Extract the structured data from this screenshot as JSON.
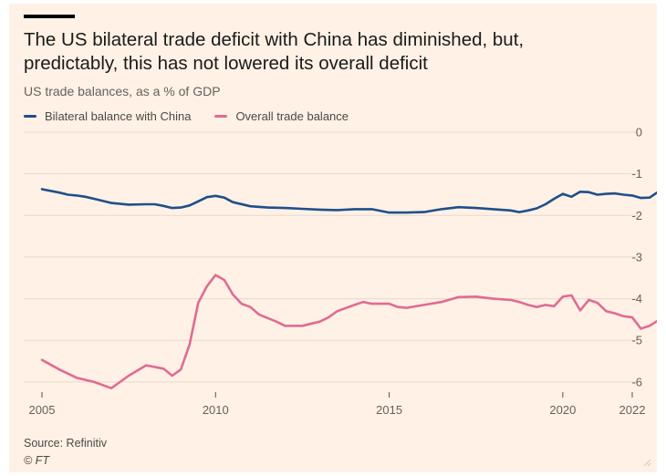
{
  "title_lines": [
    "The US bilateral trade deficit with China has diminished, but,",
    "predictably, this has not lowered its overall deficit"
  ],
  "subtitle": "US trade balances, as a % of GDP",
  "source": "Source: Refinitiv",
  "credit": "© FT",
  "colors": {
    "background": "#fff1e5",
    "china": "#1f4f8a",
    "overall": "#e06b93",
    "grid": "#e6d9ce",
    "axis_text": "#66605c"
  },
  "chart_data": {
    "type": "line",
    "title": "The US bilateral trade deficit with China has diminished, but, predictably, this has not lowered its overall deficit",
    "subtitle": "US trade balances, as a % of GDP",
    "xlabel": "",
    "ylabel": "",
    "xlim": [
      2005,
      2022
    ],
    "ylim": [
      -6.2,
      0
    ],
    "x_ticks": [
      2005,
      2010,
      2015,
      2020,
      2022
    ],
    "x_tick_labels": [
      "2005",
      "2010",
      "2015",
      "2020",
      "2022"
    ],
    "y_ticks": [
      0,
      -1,
      -2,
      -3,
      -4,
      -5,
      -6
    ],
    "y_tick_labels": [
      "0",
      "-1",
      "-2",
      "-3",
      "-4",
      "-5",
      "-6"
    ],
    "grid": "horizontal",
    "legend": "top-left",
    "series": [
      {
        "name": "Bilateral balance with China",
        "color": "#1f4f8a",
        "points": [
          [
            2005.0,
            -1.37
          ],
          [
            2005.5,
            -1.45
          ],
          [
            2005.75,
            -1.5
          ],
          [
            2006.0,
            -1.52
          ],
          [
            2006.25,
            -1.55
          ],
          [
            2006.5,
            -1.6
          ],
          [
            2007.0,
            -1.7
          ],
          [
            2007.5,
            -1.74
          ],
          [
            2008.0,
            -1.73
          ],
          [
            2008.25,
            -1.73
          ],
          [
            2008.5,
            -1.77
          ],
          [
            2008.75,
            -1.82
          ],
          [
            2009.0,
            -1.81
          ],
          [
            2009.25,
            -1.76
          ],
          [
            2009.5,
            -1.66
          ],
          [
            2009.75,
            -1.56
          ],
          [
            2010.0,
            -1.53
          ],
          [
            2010.25,
            -1.57
          ],
          [
            2010.5,
            -1.68
          ],
          [
            2011.0,
            -1.78
          ],
          [
            2011.5,
            -1.81
          ],
          [
            2012.0,
            -1.82
          ],
          [
            2012.5,
            -1.84
          ],
          [
            2013.0,
            -1.86
          ],
          [
            2013.5,
            -1.87
          ],
          [
            2014.0,
            -1.85
          ],
          [
            2014.5,
            -1.85
          ],
          [
            2015.0,
            -1.93
          ],
          [
            2015.5,
            -1.93
          ],
          [
            2016.0,
            -1.92
          ],
          [
            2016.5,
            -1.85
          ],
          [
            2017.0,
            -1.8
          ],
          [
            2017.5,
            -1.82
          ],
          [
            2018.0,
            -1.85
          ],
          [
            2018.5,
            -1.88
          ],
          [
            2018.75,
            -1.92
          ],
          [
            2019.0,
            -1.88
          ],
          [
            2019.25,
            -1.83
          ],
          [
            2019.5,
            -1.73
          ],
          [
            2019.75,
            -1.6
          ],
          [
            2020.0,
            -1.48
          ],
          [
            2020.25,
            -1.55
          ],
          [
            2020.5,
            -1.43
          ],
          [
            2020.75,
            -1.44
          ],
          [
            2021.0,
            -1.5
          ],
          [
            2021.25,
            -1.48
          ],
          [
            2021.5,
            -1.47
          ],
          [
            2021.75,
            -1.5
          ],
          [
            2022.0,
            -1.52
          ],
          [
            2022.25,
            -1.58
          ],
          [
            2022.5,
            -1.57
          ],
          [
            2022.75,
            -1.43
          ]
        ]
      },
      {
        "name": "Overall trade balance",
        "color": "#e06b93",
        "points": [
          [
            2005.0,
            -5.47
          ],
          [
            2005.5,
            -5.7
          ],
          [
            2006.0,
            -5.9
          ],
          [
            2006.5,
            -6.0
          ],
          [
            2007.0,
            -6.15
          ],
          [
            2007.5,
            -5.85
          ],
          [
            2008.0,
            -5.6
          ],
          [
            2008.5,
            -5.68
          ],
          [
            2008.75,
            -5.85
          ],
          [
            2009.0,
            -5.7
          ],
          [
            2009.25,
            -5.1
          ],
          [
            2009.5,
            -4.1
          ],
          [
            2009.75,
            -3.7
          ],
          [
            2010.0,
            -3.43
          ],
          [
            2010.25,
            -3.55
          ],
          [
            2010.5,
            -3.9
          ],
          [
            2010.75,
            -4.12
          ],
          [
            2011.0,
            -4.2
          ],
          [
            2011.25,
            -4.38
          ],
          [
            2011.75,
            -4.55
          ],
          [
            2012.0,
            -4.65
          ],
          [
            2012.5,
            -4.65
          ],
          [
            2013.0,
            -4.55
          ],
          [
            2013.25,
            -4.45
          ],
          [
            2013.5,
            -4.3
          ],
          [
            2014.0,
            -4.15
          ],
          [
            2014.25,
            -4.08
          ],
          [
            2014.5,
            -4.12
          ],
          [
            2015.0,
            -4.12
          ],
          [
            2015.25,
            -4.2
          ],
          [
            2015.5,
            -4.22
          ],
          [
            2016.0,
            -4.15
          ],
          [
            2016.5,
            -4.08
          ],
          [
            2017.0,
            -3.96
          ],
          [
            2017.5,
            -3.95
          ],
          [
            2018.0,
            -4.0
          ],
          [
            2018.5,
            -4.03
          ],
          [
            2018.75,
            -4.08
          ],
          [
            2019.0,
            -4.15
          ],
          [
            2019.25,
            -4.2
          ],
          [
            2019.5,
            -4.15
          ],
          [
            2019.75,
            -4.18
          ],
          [
            2020.0,
            -3.95
          ],
          [
            2020.25,
            -3.92
          ],
          [
            2020.5,
            -4.28
          ],
          [
            2020.75,
            -4.03
          ],
          [
            2021.0,
            -4.1
          ],
          [
            2021.25,
            -4.3
          ],
          [
            2021.5,
            -4.35
          ],
          [
            2021.75,
            -4.42
          ],
          [
            2022.0,
            -4.45
          ],
          [
            2022.25,
            -4.72
          ],
          [
            2022.5,
            -4.65
          ],
          [
            2022.75,
            -4.52
          ]
        ]
      }
    ]
  }
}
